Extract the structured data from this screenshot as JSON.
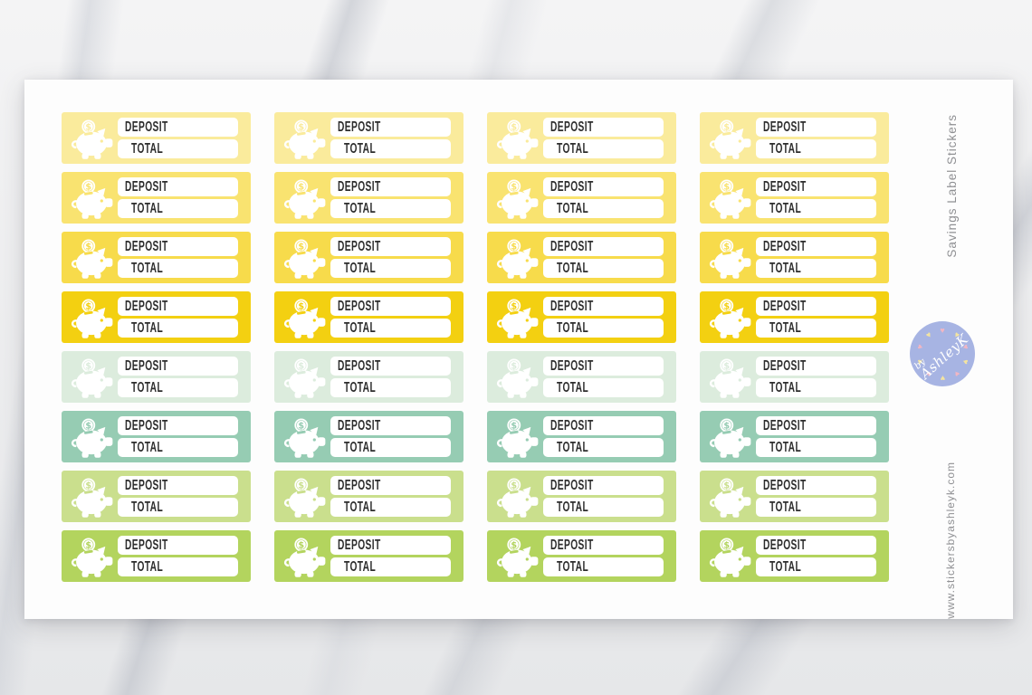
{
  "product": {
    "title": "Savings Label Stickers",
    "website": "www.stickersbyashleyk.com"
  },
  "sticker": {
    "deposit_label": "DEPOSIT",
    "total_label": "TOTAL",
    "icon": "piggy-bank-icon",
    "field_background": "#ffffff",
    "text_color": "#2d2d2d"
  },
  "grid": {
    "columns": 4,
    "rows": 8,
    "row_colors": [
      "#faeb9c",
      "#f9e370",
      "#f7db4b",
      "#f3d011",
      "#dcecdd",
      "#96ccb3",
      "#cadf8d",
      "#b3d45e"
    ]
  },
  "logo": {
    "prefix": "by",
    "name": "AshleyK",
    "background": "#a7b4e3",
    "heart_icon": "heart-icon",
    "heart_colors": [
      "#f2b6c3",
      "#f3e4a0"
    ],
    "hearts": 10
  }
}
